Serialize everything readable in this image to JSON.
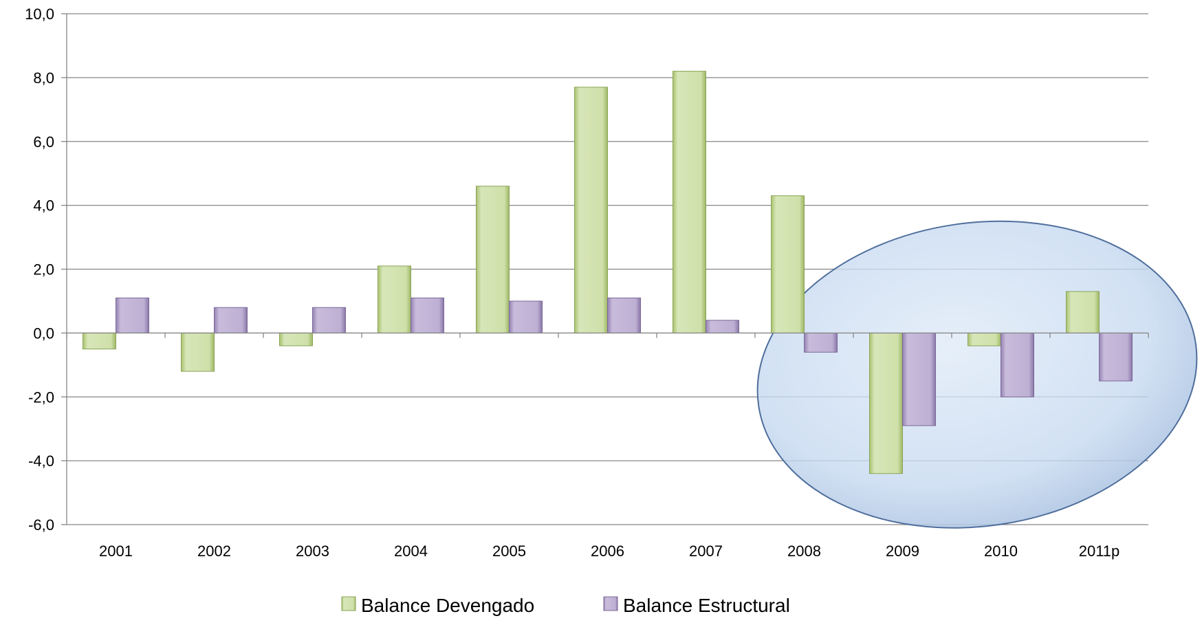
{
  "chart_data": {
    "type": "bar",
    "categories": [
      "2001",
      "2002",
      "2003",
      "2004",
      "2005",
      "2006",
      "2007",
      "2008",
      "2009",
      "2010",
      "2011p"
    ],
    "series": [
      {
        "name": "Balance Devengado",
        "color": "#c3d69b",
        "values": [
          -0.5,
          -1.2,
          -0.4,
          2.1,
          4.6,
          7.7,
          8.2,
          4.3,
          -4.4,
          -0.4,
          1.3
        ]
      },
      {
        "name": "Balance Estructural",
        "color": "#b3a2c7",
        "values": [
          1.1,
          0.8,
          0.8,
          1.1,
          1.0,
          1.1,
          0.4,
          -0.6,
          -2.9,
          -2.0,
          -1.5
        ]
      }
    ],
    "ylim": [
      -6.0,
      10.0
    ],
    "yticks": [
      "10,0",
      "8,0",
      "6,0",
      "4,0",
      "2,0",
      "0,0",
      "-2,0",
      "-4,0",
      "-6,0"
    ],
    "title": "",
    "xlabel": "",
    "ylabel": "",
    "grid": true,
    "legend_position": "bottom",
    "highlight_ellipse": {
      "categories": [
        "2008",
        "2011p"
      ],
      "color": "#c6d9f0"
    }
  }
}
